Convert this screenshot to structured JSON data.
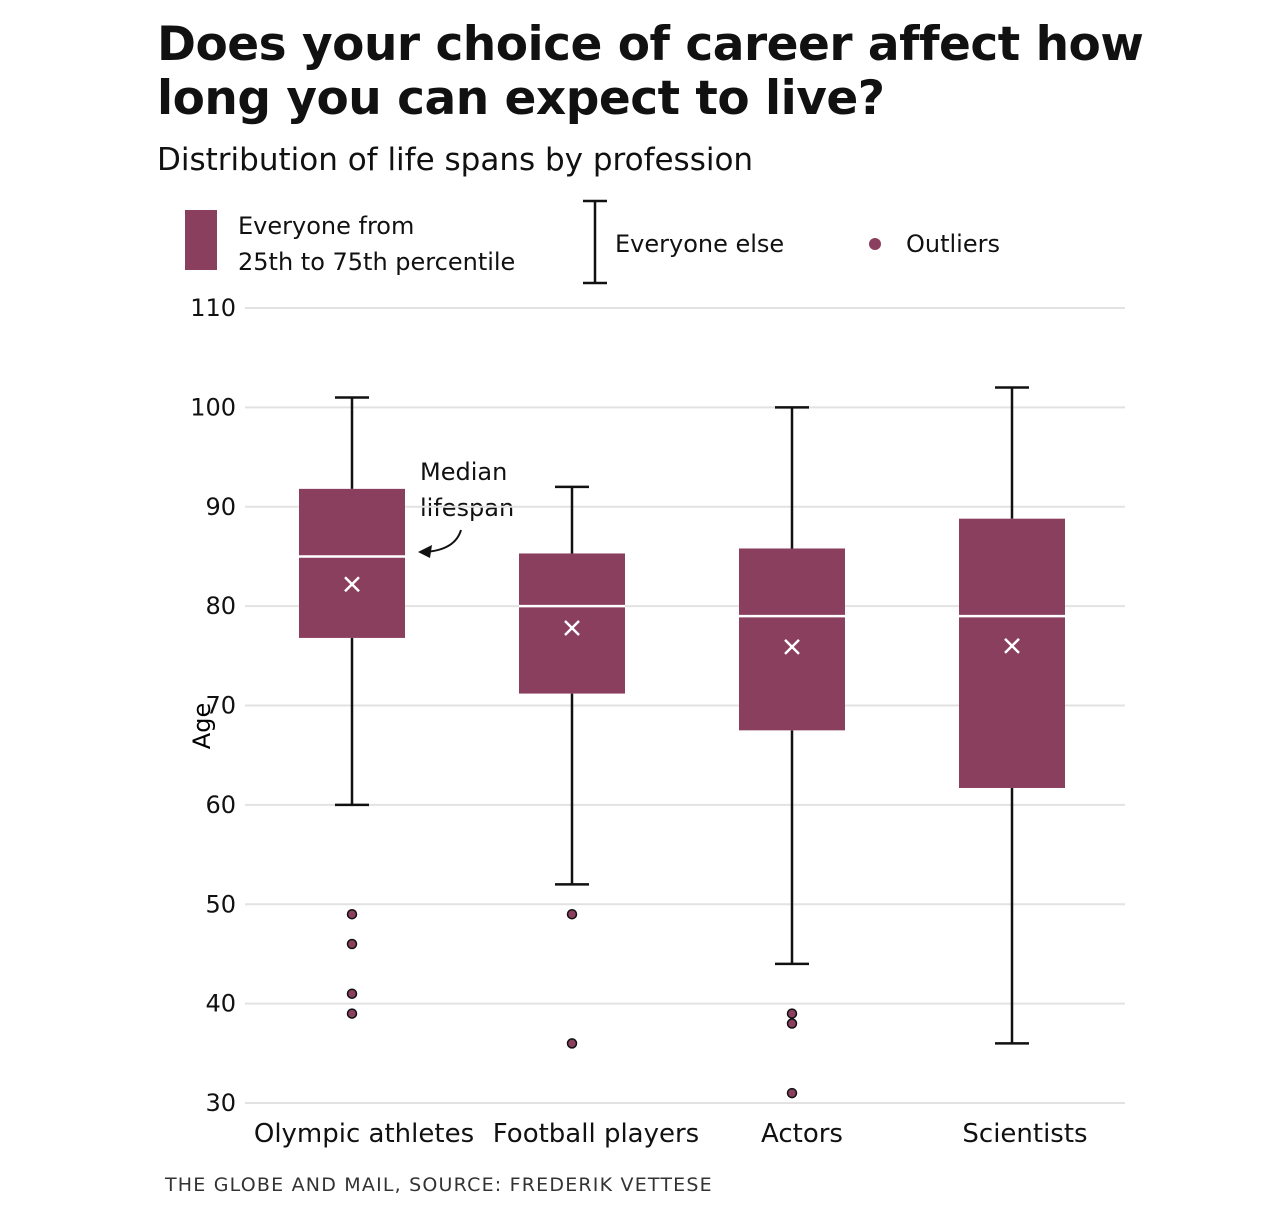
{
  "title": "Does your choice of career affect how long you can expect to live?",
  "subtitle": "Distribution of life spans by profession",
  "legend": {
    "box_label_line1": "Everyone from",
    "box_label_line2": "25th to 75th percentile",
    "whisker_label": "Everyone else",
    "outlier_label": "Outliers"
  },
  "annotation": {
    "line1": "Median",
    "line2": "lifespan"
  },
  "source": "THE GLOBE AND MAIL, SOURCE: FREDERIK VETTESE",
  "colors": {
    "box": "#8a3f5e",
    "whisker": "#111111",
    "grid": "#e2e2e2",
    "median": "#ffffff"
  },
  "chart_data": {
    "type": "box",
    "title": "Does your choice of career affect how long you can expect to live?",
    "subtitle": "Distribution of life spans by profession",
    "ylabel": "Age",
    "ylim": [
      30,
      110
    ],
    "yticks": [
      30,
      40,
      50,
      60,
      70,
      80,
      90,
      100,
      110
    ],
    "grid": true,
    "legend_position": "top",
    "categories": [
      "Olympic athletes",
      "Football players",
      "Actors",
      "Scientists"
    ],
    "series": [
      {
        "category": "Olympic athletes",
        "whisker_low": 60,
        "q1": 76.8,
        "median": 85,
        "mean": 82.2,
        "q3": 91.8,
        "whisker_high": 101,
        "outliers": [
          49,
          46,
          41,
          39
        ]
      },
      {
        "category": "Football players",
        "whisker_low": 52,
        "q1": 71.2,
        "median": 80,
        "mean": 77.8,
        "q3": 85.3,
        "whisker_high": 92,
        "outliers": [
          49,
          36
        ]
      },
      {
        "category": "Actors",
        "whisker_low": 44,
        "q1": 67.5,
        "median": 79,
        "mean": 75.9,
        "q3": 85.8,
        "whisker_high": 100,
        "outliers": [
          39,
          38,
          31
        ]
      },
      {
        "category": "Scientists",
        "whisker_low": 36,
        "q1": 61.7,
        "median": 79,
        "mean": 76,
        "q3": 88.8,
        "whisker_high": 102,
        "outliers": []
      }
    ]
  }
}
